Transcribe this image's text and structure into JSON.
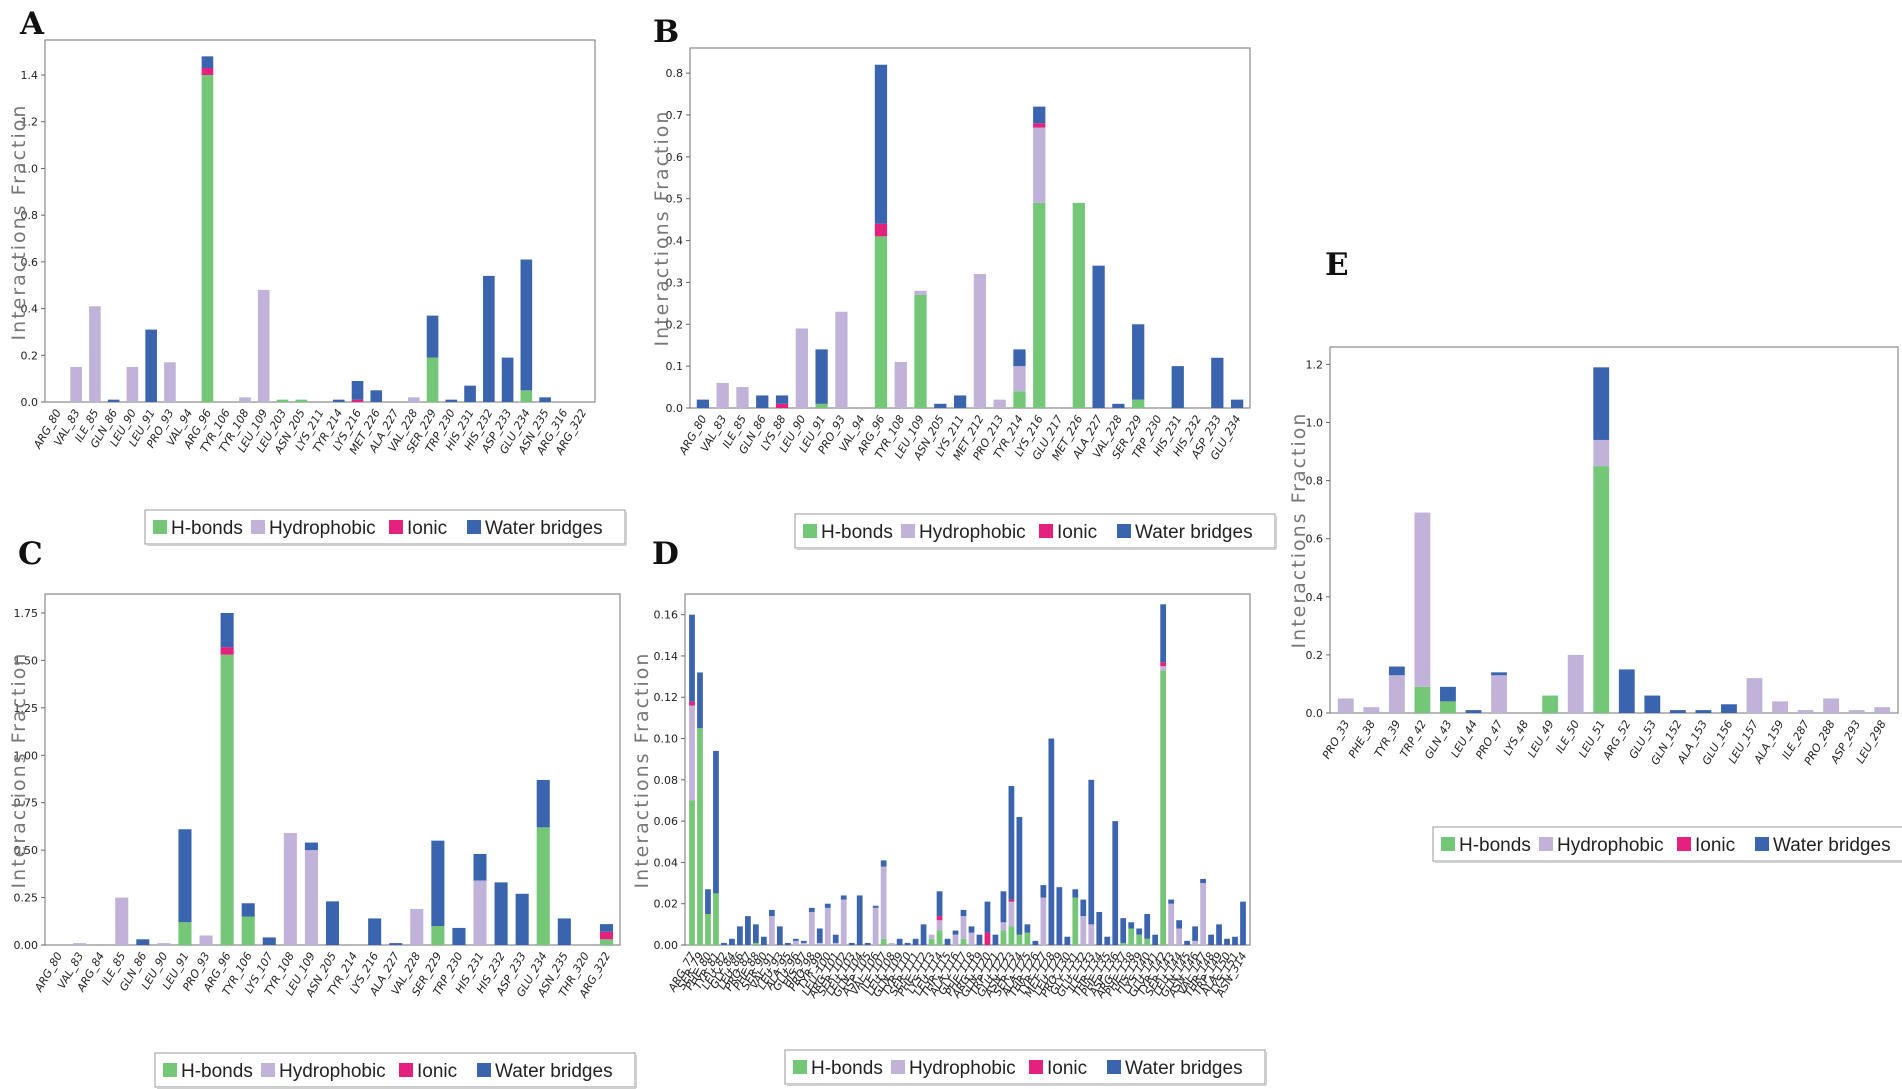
{
  "colors": {
    "hbonds": "#74c776",
    "hydrophobic": "#c0b2d8",
    "ionic": "#e4217c",
    "water": "#3a64ad"
  },
  "legend": [
    "H-bonds",
    "Hydrophobic",
    "Ionic",
    "Water bridges"
  ],
  "y_label": "Interactions Fraction",
  "chart_data": [
    {
      "panel": "A",
      "type": "bar",
      "stacked": true,
      "ylabel": "Interactions Fraction",
      "ylim": [
        0,
        1.55
      ],
      "yticks": [
        0,
        0.2,
        0.4,
        0.6,
        0.8,
        1.0,
        1.2,
        1.4
      ],
      "ytick_labels": [
        "0.0",
        "0.2",
        "0.4",
        "0.6",
        "0.8",
        "1.0",
        "1.2",
        "1.4"
      ],
      "series_names": [
        "H-bonds",
        "Hydrophobic",
        "Ionic",
        "Water bridges"
      ],
      "categories": [
        "ARG_80",
        "VAL_83",
        "ILE_85",
        "GLN_86",
        "LEU_90",
        "LEU_91",
        "PRO_93",
        "VAL_94",
        "ARG_96",
        "TYR_106",
        "TYR_108",
        "LEU_109",
        "LEU_203",
        "ASN_205",
        "LYS_211",
        "TYR_214",
        "LYS_216",
        "MET_226",
        "ALA_227",
        "VAL_228",
        "SER_229",
        "TRP_230",
        "HIS_231",
        "HIS_232",
        "ASP_233",
        "GLU_234",
        "ASN_235",
        "ARG_316",
        "ARG_322"
      ],
      "series": [
        {
          "name": "H-bonds",
          "values": [
            0,
            0,
            0,
            0,
            0,
            0,
            0,
            0,
            1.4,
            0,
            0,
            0,
            0.01,
            0.01,
            0,
            0,
            0,
            0,
            0,
            0,
            0.19,
            0,
            0,
            0,
            0,
            0.05,
            0,
            0,
            0
          ]
        },
        {
          "name": "Hydrophobic",
          "values": [
            0,
            0.15,
            0.41,
            0,
            0.15,
            0,
            0.17,
            0,
            0,
            0,
            0.02,
            0.48,
            0,
            0,
            0,
            0,
            0,
            0,
            0,
            0.02,
            0,
            0,
            0,
            0,
            0,
            0,
            0,
            0,
            0
          ]
        },
        {
          "name": "Ionic",
          "values": [
            0,
            0,
            0,
            0,
            0,
            0,
            0,
            0,
            0.03,
            0,
            0,
            0,
            0,
            0,
            0,
            0,
            0.01,
            0,
            0,
            0,
            0,
            0,
            0,
            0,
            0,
            0,
            0,
            0,
            0
          ]
        },
        {
          "name": "Water bridges",
          "values": [
            0,
            0,
            0,
            0.01,
            0,
            0.31,
            0,
            0,
            0.05,
            0,
            0,
            0,
            0,
            0,
            0,
            0.01,
            0.08,
            0.05,
            0,
            0,
            0.18,
            0.01,
            0.07,
            0.54,
            0.19,
            0.56,
            0.02,
            0,
            0
          ]
        }
      ]
    },
    {
      "panel": "B",
      "type": "bar",
      "stacked": true,
      "ylabel": "Interactions Fraction",
      "ylim": [
        0,
        0.86
      ],
      "yticks": [
        0,
        0.1,
        0.2,
        0.3,
        0.4,
        0.5,
        0.6,
        0.7,
        0.8
      ],
      "ytick_labels": [
        "0.0",
        "0.1",
        "0.2",
        "0.3",
        "0.4",
        "0.5",
        "0.6",
        "0.7",
        "0.8"
      ],
      "series_names": [
        "H-bonds",
        "Hydrophobic",
        "Ionic",
        "Water bridges"
      ],
      "categories": [
        "ARG_80",
        "VAL_83",
        "ILE_85",
        "GLN_86",
        "LYS_88",
        "LEU_90",
        "LEU_91",
        "PRO_93",
        "VAL_94",
        "ARG_96",
        "TYR_108",
        "LEU_109",
        "ASN_205",
        "LYS_211",
        "MET_212",
        "PRO_213",
        "TYR_214",
        "LYS_216",
        "GLU_217",
        "MET_226",
        "ALA_227",
        "VAL_228",
        "SER_229",
        "TRP_230",
        "HIS_231",
        "HIS_232",
        "ASP_233",
        "GLU_234"
      ],
      "series": [
        {
          "name": "H-bonds",
          "values": [
            0,
            0,
            0,
            0,
            0,
            0,
            0.01,
            0,
            0,
            0.41,
            0,
            0.27,
            0,
            0,
            0,
            0,
            0.04,
            0.49,
            0,
            0.49,
            0,
            0,
            0.02,
            0,
            0,
            0,
            0,
            0
          ]
        },
        {
          "name": "Hydrophobic",
          "values": [
            0,
            0.06,
            0.05,
            0,
            0,
            0.19,
            0,
            0.23,
            0,
            0,
            0.11,
            0.01,
            0,
            0,
            0.32,
            0.02,
            0.06,
            0.18,
            0,
            0,
            0,
            0,
            0,
            0,
            0,
            0,
            0,
            0
          ]
        },
        {
          "name": "Ionic",
          "values": [
            0,
            0,
            0,
            0,
            0.01,
            0,
            0,
            0,
            0,
            0.03,
            0,
            0,
            0,
            0,
            0,
            0,
            0,
            0.01,
            0,
            0,
            0,
            0,
            0,
            0,
            0,
            0,
            0,
            0
          ]
        },
        {
          "name": "Water bridges",
          "values": [
            0.02,
            0,
            0,
            0.03,
            0.02,
            0,
            0.13,
            0,
            0,
            0.38,
            0,
            0,
            0.01,
            0.03,
            0,
            0,
            0.04,
            0.04,
            0,
            0,
            0.34,
            0.01,
            0.18,
            0,
            0.1,
            0,
            0.12,
            0.02
          ]
        }
      ]
    },
    {
      "panel": "C",
      "type": "bar",
      "stacked": true,
      "ylabel": "Interactions Fraction",
      "ylim": [
        0,
        1.85
      ],
      "yticks": [
        0,
        0.25,
        0.5,
        0.75,
        1.0,
        1.25,
        1.5,
        1.75
      ],
      "ytick_labels": [
        "0.00",
        "0.25",
        "0.50",
        "0.75",
        "1.00",
        "1.25",
        "1.50",
        "1.75"
      ],
      "series_names": [
        "H-bonds",
        "Hydrophobic",
        "Ionic",
        "Water bridges"
      ],
      "categories": [
        "ARG_80",
        "VAL_83",
        "ARG_84",
        "ILE_85",
        "GLN_86",
        "LEU_90",
        "LEU_91",
        "PRO_93",
        "ARG_96",
        "TYR_106",
        "LYS_107",
        "TYR_108",
        "LEU_109",
        "ASN_205",
        "TYR_214",
        "LYS_216",
        "ALA_227",
        "VAL_228",
        "SER_229",
        "TRP_230",
        "HIS_231",
        "HIS_232",
        "ASP_233",
        "GLU_234",
        "ASN_235",
        "THR_320",
        "ARG_322"
      ],
      "series": [
        {
          "name": "H-bonds",
          "values": [
            0,
            0,
            0,
            0,
            0,
            0,
            0.12,
            0,
            1.53,
            0.15,
            0,
            0,
            0,
            0,
            0,
            0,
            0,
            0,
            0.1,
            0,
            0,
            0,
            0,
            0.62,
            0,
            0,
            0.03
          ]
        },
        {
          "name": "Hydrophobic",
          "values": [
            0,
            0.01,
            0,
            0.25,
            0,
            0.01,
            0,
            0.05,
            0,
            0,
            0,
            0.59,
            0.5,
            0,
            0,
            0,
            0,
            0.19,
            0,
            0,
            0.34,
            0,
            0,
            0,
            0,
            0,
            0
          ]
        },
        {
          "name": "Ionic",
          "values": [
            0,
            0,
            0,
            0,
            0,
            0,
            0,
            0,
            0.04,
            0,
            0,
            0,
            0,
            0,
            0,
            0,
            0,
            0,
            0,
            0,
            0,
            0,
            0,
            0,
            0,
            0,
            0.04
          ]
        },
        {
          "name": "Water bridges",
          "values": [
            0,
            0,
            0,
            0,
            0.03,
            0,
            0.49,
            0,
            0.18,
            0.07,
            0.04,
            0,
            0.04,
            0.23,
            0,
            0.14,
            0.01,
            0,
            0.45,
            0.09,
            0.14,
            0.33,
            0.27,
            0.25,
            0.14,
            0,
            0.04
          ]
        }
      ]
    },
    {
      "panel": "D",
      "type": "bar",
      "stacked": true,
      "ylabel": "Interactions Fraction",
      "ylim": [
        0,
        0.17
      ],
      "yticks": [
        0,
        0.02,
        0.04,
        0.06,
        0.08,
        0.1,
        0.12,
        0.14,
        0.16
      ],
      "ytick_labels": [
        "0.00",
        "0.02",
        "0.04",
        "0.06",
        "0.08",
        "0.10",
        "0.12",
        "0.14",
        "0.16"
      ],
      "series_names": [
        "H-bonds",
        "Hydrophobic",
        "Ionic",
        "Water bridges"
      ],
      "categories": [
        "ARG_77",
        "SER_79",
        "PHE_80",
        "TYR_81",
        "LEU_82",
        "GLY_84",
        "LEU_86",
        "PRO_87",
        "PHE_88",
        "SER_90",
        "VAL_91",
        "LEU_93",
        "ALA_95",
        "GLU_96",
        "HIS_97",
        "PRO_98",
        "TYR_99",
        "LEU_100",
        "ARG_101",
        "SER_102",
        "LEU_103",
        "GLN_104",
        "ASP_105",
        "VAL_106",
        "ILE_107",
        "LEU_108",
        "GLN_109",
        "TYR_110",
        "SER_111",
        "PHE_112",
        "LYS_113",
        "LEU_114",
        "THR_115",
        "ALA_116",
        "GLY_117",
        "PHE_118",
        "ARG_119",
        "GLN_120",
        "TRP_121",
        "GLU_122",
        "ASN_123",
        "SER_124",
        "ALA_125",
        "THR_126",
        "TYR_127",
        "MET_128",
        "LEU_129",
        "PRO_130",
        "GLY_131",
        "GLU_132",
        "ILE_133",
        "THR_134",
        "PHE_135",
        "ASP_136",
        "ARG_137",
        "PHE_138",
        "HIS_139",
        "LYS_140",
        "GLU_141",
        "TYR_142",
        "SER_143",
        "LEU_144",
        "GLN_145",
        "ASN_146",
        "VAL_147",
        "THR_148",
        "TRP_149",
        "ALA_150",
        "LYS_151",
        "ASN_314"
      ],
      "series": [
        {
          "name": "H-bonds",
          "values": [
            0.07,
            0.105,
            0.015,
            0.025,
            0,
            0,
            0,
            0,
            0.001,
            0,
            0,
            0,
            0,
            0,
            0,
            0,
            0,
            0,
            0,
            0,
            0,
            0,
            0,
            0,
            0.003,
            0,
            0,
            0,
            0,
            0,
            0.003,
            0.007,
            0,
            0,
            0.003,
            0,
            0,
            0,
            0,
            0.007,
            0.009,
            0.005,
            0.006,
            0,
            0,
            0,
            0,
            0,
            0.023,
            0,
            0,
            0,
            0,
            0,
            0.001,
            0.008,
            0.005,
            0.003,
            0,
            0.133,
            0,
            0,
            0,
            0,
            0,
            0,
            0,
            0,
            0,
            0
          ]
        },
        {
          "name": "Hydrophobic",
          "values": [
            0.046,
            0,
            0,
            0,
            0,
            0,
            0,
            0,
            0,
            0,
            0.014,
            0,
            0,
            0.002,
            0.001,
            0.016,
            0.001,
            0.018,
            0.001,
            0.022,
            0,
            0,
            0,
            0.018,
            0.035,
            0.001,
            0,
            0,
            0,
            0,
            0.002,
            0.005,
            0,
            0.005,
            0.011,
            0.006,
            0,
            0,
            0,
            0.004,
            0.012,
            0,
            0,
            0,
            0.023,
            0,
            0,
            0,
            0,
            0.014,
            0.01,
            0,
            0,
            0,
            0,
            0,
            0,
            0,
            0,
            0.002,
            0.02,
            0.008,
            0,
            0.002,
            0.03,
            0,
            0,
            0,
            0,
            0
          ]
        },
        {
          "name": "Ionic",
          "values": [
            0.002,
            0,
            0,
            0,
            0,
            0,
            0,
            0,
            0,
            0,
            0,
            0,
            0,
            0,
            0,
            0,
            0,
            0,
            0,
            0,
            0,
            0,
            0,
            0,
            0,
            0,
            0,
            0,
            0,
            0,
            0,
            0.002,
            0,
            0,
            0,
            0,
            0,
            0.006,
            0,
            0,
            0.001,
            0,
            0,
            0,
            0,
            0,
            0,
            0,
            0,
            0,
            0,
            0,
            0,
            0,
            0,
            0,
            0,
            0,
            0,
            0.002,
            0,
            0,
            0,
            0,
            0,
            0,
            0,
            0,
            0,
            0
          ]
        },
        {
          "name": "Water bridges",
          "values": [
            0.042,
            0.027,
            0.012,
            0.069,
            0.001,
            0.003,
            0.009,
            0.014,
            0.009,
            0.004,
            0.003,
            0.009,
            0.001,
            0.001,
            0.001,
            0.002,
            0.007,
            0.002,
            0.004,
            0.002,
            0.001,
            0.024,
            0.001,
            0.001,
            0.003,
            0,
            0.003,
            0.001,
            0.003,
            0.01,
            0,
            0.012,
            0.003,
            0.002,
            0.003,
            0.003,
            0.005,
            0.015,
            0.005,
            0.015,
            0.055,
            0.057,
            0.004,
            0.002,
            0.006,
            0.1,
            0.028,
            0.004,
            0.004,
            0.008,
            0.07,
            0.016,
            0.004,
            0.06,
            0.012,
            0.003,
            0.003,
            0.012,
            0.005,
            0.028,
            0.002,
            0.004,
            0.002,
            0.007,
            0.002,
            0.005,
            0.01,
            0.003,
            0.004,
            0.021
          ]
        }
      ]
    },
    {
      "panel": "E",
      "type": "bar",
      "stacked": true,
      "ylabel": "Interactions Fraction",
      "ylim": [
        0,
        1.26
      ],
      "yticks": [
        0,
        0.2,
        0.4,
        0.6,
        0.8,
        1.0,
        1.2
      ],
      "ytick_labels": [
        "0.0",
        "0.2",
        "0.4",
        "0.6",
        "0.8",
        "1.0",
        "1.2"
      ],
      "series_names": [
        "H-bonds",
        "Hydrophobic",
        "Ionic",
        "Water bridges"
      ],
      "categories": [
        "PRO_33",
        "PHE_38",
        "TYR_39",
        "TRP_42",
        "GLN_43",
        "LEU_44",
        "PRO_47",
        "LYS_48",
        "LEU_49",
        "ILE_50",
        "LEU_51",
        "ARG_52",
        "GLU_53",
        "GLN_152",
        "ALA_153",
        "GLU_156",
        "LEU_157",
        "ALA_159",
        "ILE_287",
        "PRO_288",
        "ASP_293",
        "LEU_298"
      ],
      "series": [
        {
          "name": "H-bonds",
          "values": [
            0,
            0,
            0,
            0.09,
            0.04,
            0,
            0,
            0,
            0.06,
            0,
            0.85,
            0,
            0,
            0,
            0,
            0,
            0,
            0,
            0,
            0,
            0,
            0
          ]
        },
        {
          "name": "Hydrophobic",
          "values": [
            0.05,
            0.02,
            0.13,
            0.6,
            0,
            0,
            0.13,
            0,
            0,
            0.2,
            0.09,
            0,
            0,
            0,
            0,
            0,
            0.12,
            0.04,
            0.01,
            0.05,
            0.01,
            0.02
          ]
        },
        {
          "name": "Ionic",
          "values": [
            0,
            0,
            0,
            0,
            0,
            0,
            0,
            0,
            0,
            0,
            0,
            0,
            0,
            0,
            0,
            0,
            0,
            0,
            0,
            0,
            0,
            0
          ]
        },
        {
          "name": "Water bridges",
          "values": [
            0,
            0,
            0.03,
            0,
            0.05,
            0.01,
            0.01,
            0,
            0,
            0,
            0.25,
            0.15,
            0.06,
            0.01,
            0.01,
            0.03,
            0,
            0,
            0,
            0,
            0,
            0
          ]
        }
      ]
    }
  ]
}
